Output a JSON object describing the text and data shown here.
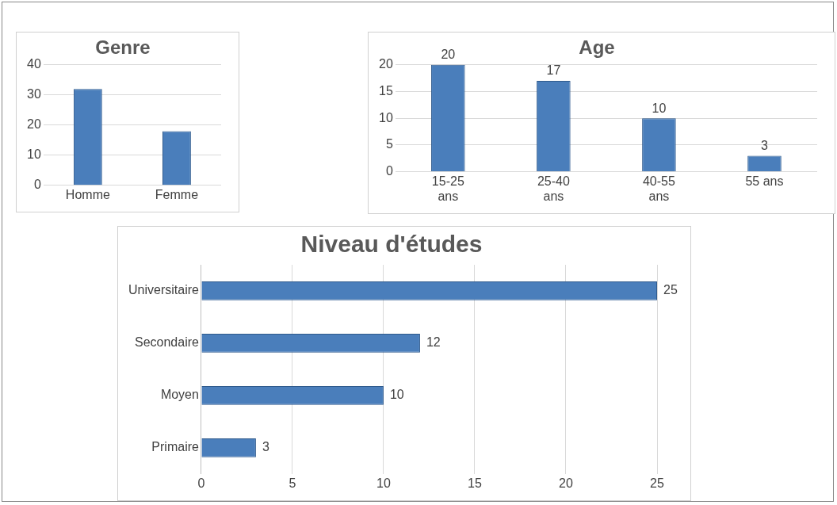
{
  "chart_data": [
    {
      "type": "bar",
      "title": "Genre",
      "categories": [
        "Homme",
        "Femme"
      ],
      "values": [
        32,
        18
      ],
      "color": "#4a7ebb",
      "ylim": [
        0,
        40
      ],
      "yticks": [
        0,
        10,
        20,
        30,
        40
      ],
      "grid": "y",
      "legend": false
    },
    {
      "type": "bar",
      "title": "Age",
      "categories": [
        "15-25 ans",
        "25-40 ans",
        "40-55 ans",
        "55 ans"
      ],
      "values": [
        20,
        17,
        10,
        3
      ],
      "color": "#4a7ebb",
      "ylim": [
        0,
        20
      ],
      "yticks": [
        0,
        5,
        10,
        15,
        20
      ],
      "grid": "y",
      "legend": false,
      "data_labels": true
    },
    {
      "type": "bar",
      "title": "Niveau d'études",
      "orientation": "horizontal",
      "categories": [
        "Universitaire",
        "Secondaire",
        "Moyen",
        "Primaire"
      ],
      "values": [
        25,
        12,
        10,
        3
      ],
      "color": "#4a7ebb",
      "xlim": [
        0,
        25
      ],
      "xticks": [
        0,
        5,
        10,
        15,
        20,
        25
      ],
      "grid": "x",
      "legend": false,
      "data_labels": true
    }
  ]
}
